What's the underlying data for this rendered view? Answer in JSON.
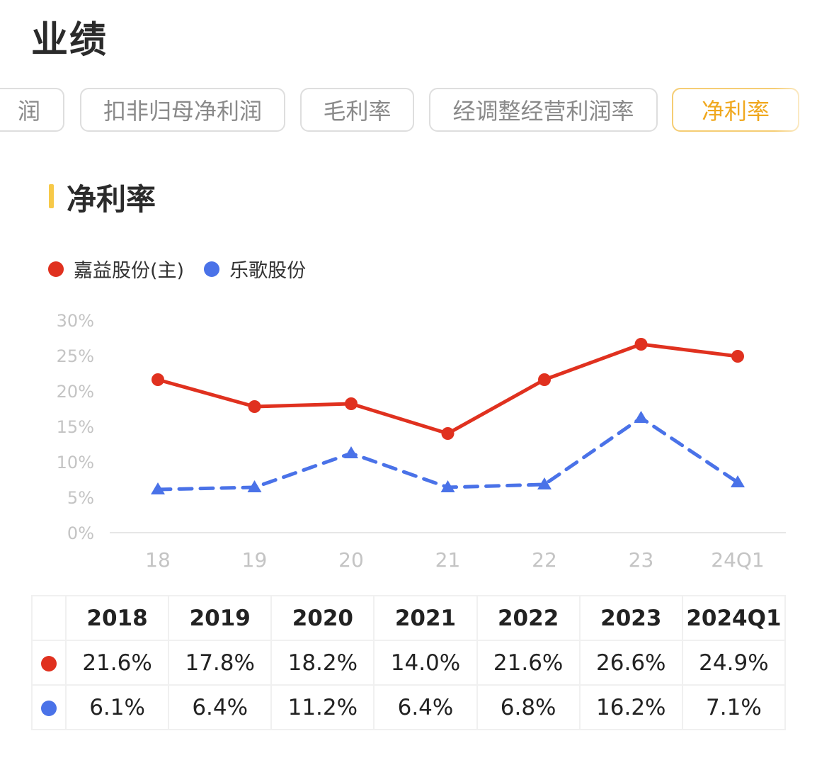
{
  "page": {
    "title": "业绩"
  },
  "tabs": [
    {
      "label": "润",
      "active": false
    },
    {
      "label": "扣非归母净利润",
      "active": false
    },
    {
      "label": "毛利率",
      "active": false
    },
    {
      "label": "经调整经营利润率",
      "active": false
    },
    {
      "label": "净利率",
      "active": true
    }
  ],
  "section": {
    "title": "净利率",
    "accent_color": "#f7c948"
  },
  "colors": {
    "series_1": "#e0311f",
    "series_2": "#4a72e8",
    "active_tab": "#f0a81e"
  },
  "chart_data": {
    "type": "line",
    "categories": [
      "18",
      "19",
      "20",
      "21",
      "22",
      "23",
      "24Q1"
    ],
    "y_ticks": [
      "0%",
      "5%",
      "10%",
      "15%",
      "20%",
      "25%",
      "30%"
    ],
    "ylim": [
      0,
      30
    ],
    "ylabel": "",
    "xlabel": "",
    "legend_position": "top-left",
    "series": [
      {
        "name": "嘉益股份(主)",
        "color": "#e0311f",
        "line_style": "solid",
        "marker": "circle",
        "values": [
          21.6,
          17.8,
          18.2,
          14.0,
          21.6,
          26.6,
          24.9
        ]
      },
      {
        "name": "乐歌股份",
        "color": "#4a72e8",
        "line_style": "dashed",
        "marker": "triangle",
        "values": [
          6.1,
          6.4,
          11.2,
          6.4,
          6.8,
          16.2,
          7.1
        ]
      }
    ]
  },
  "table": {
    "headers": [
      "2018",
      "2019",
      "2020",
      "2021",
      "2022",
      "2023",
      "2024Q1"
    ],
    "rows": [
      {
        "color": "#e0311f",
        "values": [
          "21.6%",
          "17.8%",
          "18.2%",
          "14.0%",
          "21.6%",
          "26.6%",
          "24.9%"
        ]
      },
      {
        "color": "#4a72e8",
        "values": [
          "6.1%",
          "6.4%",
          "11.2%",
          "6.4%",
          "6.8%",
          "16.2%",
          "7.1%"
        ]
      }
    ]
  }
}
